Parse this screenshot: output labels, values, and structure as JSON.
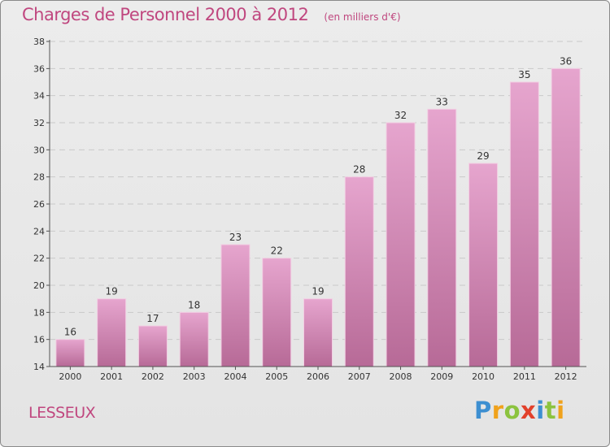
{
  "header": {
    "title": "Charges de Personnel 2000 à 2012",
    "subtitle": "(en milliers d'€)"
  },
  "footer": {
    "commune": "LESSEUX",
    "logo_letters": [
      "P",
      "r",
      "o",
      "x",
      "i",
      "t",
      "i"
    ],
    "logo_colors": [
      "#3d8fd1",
      "#f0a21c",
      "#8cc33f",
      "#e2412b",
      "#3d8fd1",
      "#8cc33f",
      "#f0a21c"
    ]
  },
  "chart_data": {
    "type": "bar",
    "title": "Charges de Personnel 2000 à 2012",
    "subtitle": "(en milliers d'€)",
    "categories": [
      "2000",
      "2001",
      "2002",
      "2003",
      "2004",
      "2005",
      "2006",
      "2007",
      "2008",
      "2009",
      "2010",
      "2011",
      "2012"
    ],
    "values": [
      16,
      19,
      17,
      18,
      23,
      22,
      19,
      28,
      32,
      33,
      29,
      35,
      36
    ],
    "ylim": [
      14,
      38
    ],
    "yticks": [
      14,
      16,
      18,
      20,
      22,
      24,
      26,
      28,
      30,
      32,
      34,
      36,
      38
    ],
    "grid": true,
    "bar_color_top": "#e6a5ce",
    "bar_color_bottom": "#b76a97"
  }
}
